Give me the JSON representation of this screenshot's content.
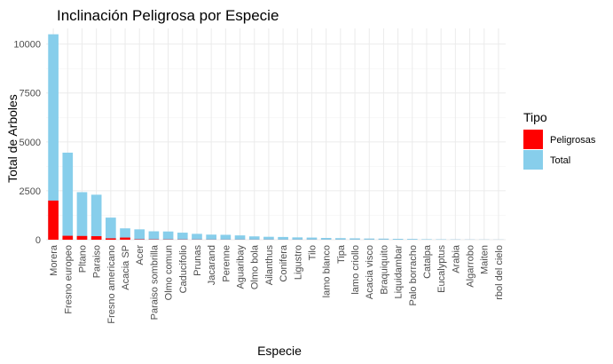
{
  "chart_data": {
    "type": "bar",
    "stacked": true,
    "title": "Inclinación Peligrosa por Especie",
    "xlabel": "Especie",
    "ylabel": "Total de Arboles",
    "ylim": [
      0,
      10800
    ],
    "yticks": [
      0,
      2500,
      5000,
      7500,
      10000
    ],
    "grid": true,
    "legend_position": "right",
    "legend_title": "Tipo",
    "categories": [
      "Morera",
      "Fresno europeo",
      "Pltano",
      "Paraiso",
      "Fresno americano",
      "Acacia SP",
      "Acer",
      "Paraiso sombrilla",
      "Olmo comun",
      "Caducifolio",
      "Prunas",
      "Jacarand",
      "Perenne",
      "Aguaribay",
      "Olmo bola",
      "Ailanthus",
      "Conifera",
      "Ligustro",
      "Tilo",
      "lamo blanco",
      "Tipa",
      "lamo criollo",
      "Acacia visco",
      "Braquiquito",
      "Liquidambar",
      "Palo borracho",
      "Catalpa",
      "Eucalyptus",
      "Arabia",
      "Algarrobo",
      "Maiten",
      "rbol del cielo"
    ],
    "series": [
      {
        "name": "Peligrosas",
        "color": "#ff0000",
        "values": [
          2000,
          200,
          190,
          180,
          70,
          110,
          20,
          15,
          12,
          10,
          8,
          6,
          5,
          5,
          4,
          4,
          3,
          3,
          3,
          2,
          2,
          2,
          2,
          2,
          1,
          1,
          1,
          1,
          1,
          1,
          1,
          1
        ]
      },
      {
        "name": "Total",
        "color": "#87ceeb",
        "values": [
          10500,
          4450,
          2430,
          2300,
          1130,
          580,
          530,
          430,
          420,
          360,
          300,
          260,
          250,
          220,
          170,
          150,
          140,
          120,
          110,
          90,
          80,
          70,
          60,
          55,
          45,
          40,
          25,
          20,
          15,
          12,
          10,
          8
        ]
      }
    ]
  }
}
